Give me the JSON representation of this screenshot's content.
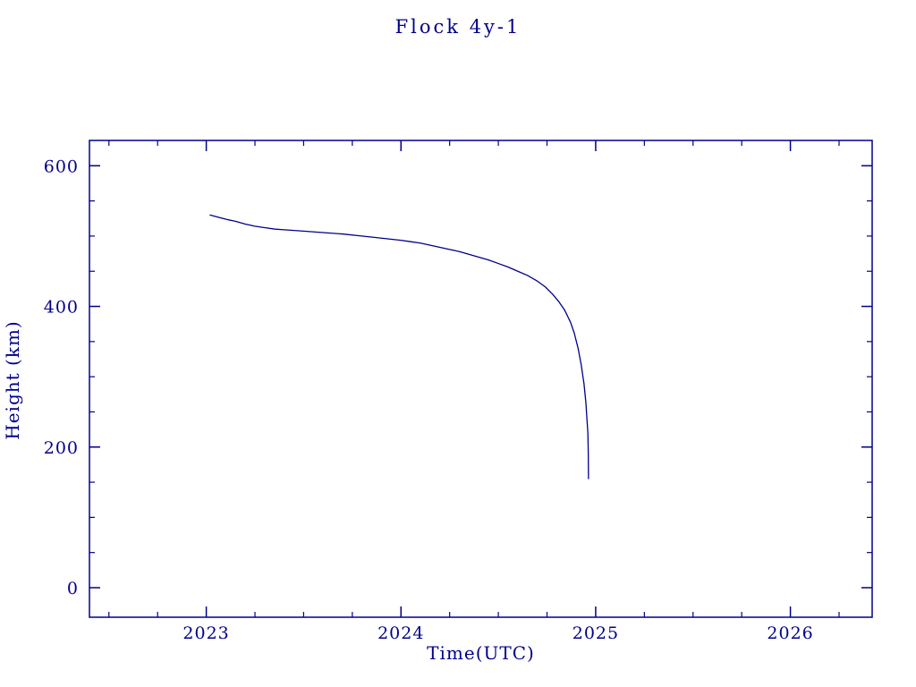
{
  "chart_data": {
    "type": "line",
    "title": "Flock 4y-1",
    "xlabel": "Time(UTC)",
    "ylabel": "Height (km)",
    "xlim": [
      2022.4,
      2026.42
    ],
    "ylim": [
      -42,
      636
    ],
    "grid": false,
    "legend": "none",
    "x_ticks": {
      "values": [
        2023,
        2024,
        2025,
        2026
      ],
      "labels": [
        "2023",
        "2024",
        "2025",
        "2026"
      ]
    },
    "y_ticks": {
      "values": [
        0,
        200,
        400,
        600
      ],
      "labels": [
        "0",
        "200",
        "400",
        "600"
      ]
    },
    "x_minor_step": 0.25,
    "y_minor_step": 50,
    "colors": {
      "line": "#00008B",
      "axis": "#00008B",
      "text": "#00008B",
      "background": "#FFFFFF"
    },
    "series": [
      {
        "name": "Flock 4y-1 height",
        "x": [
          2023.02,
          2023.06,
          2023.1,
          2023.15,
          2023.2,
          2023.25,
          2023.3,
          2023.35,
          2023.4,
          2023.45,
          2023.5,
          2023.6,
          2023.7,
          2023.8,
          2023.9,
          2024.0,
          2024.05,
          2024.1,
          2024.15,
          2024.2,
          2024.25,
          2024.3,
          2024.35,
          2024.4,
          2024.45,
          2024.5,
          2024.55,
          2024.6,
          2024.65,
          2024.7,
          2024.74,
          2024.78,
          2024.81,
          2024.84,
          2024.87,
          2024.89,
          2024.91,
          2024.925,
          2024.94,
          2024.95,
          2024.955,
          2024.96,
          2024.962,
          2024.963
        ],
        "y": [
          530,
          527,
          524,
          521,
          517,
          514,
          512,
          510,
          509,
          508,
          507,
          505,
          503,
          500,
          497,
          494,
          492,
          490,
          487,
          484,
          481,
          478,
          474,
          470,
          466,
          461,
          456,
          450,
          444,
          436,
          428,
          417,
          407,
          395,
          378,
          362,
          340,
          318,
          290,
          262,
          240,
          220,
          190,
          155
        ]
      }
    ]
  }
}
